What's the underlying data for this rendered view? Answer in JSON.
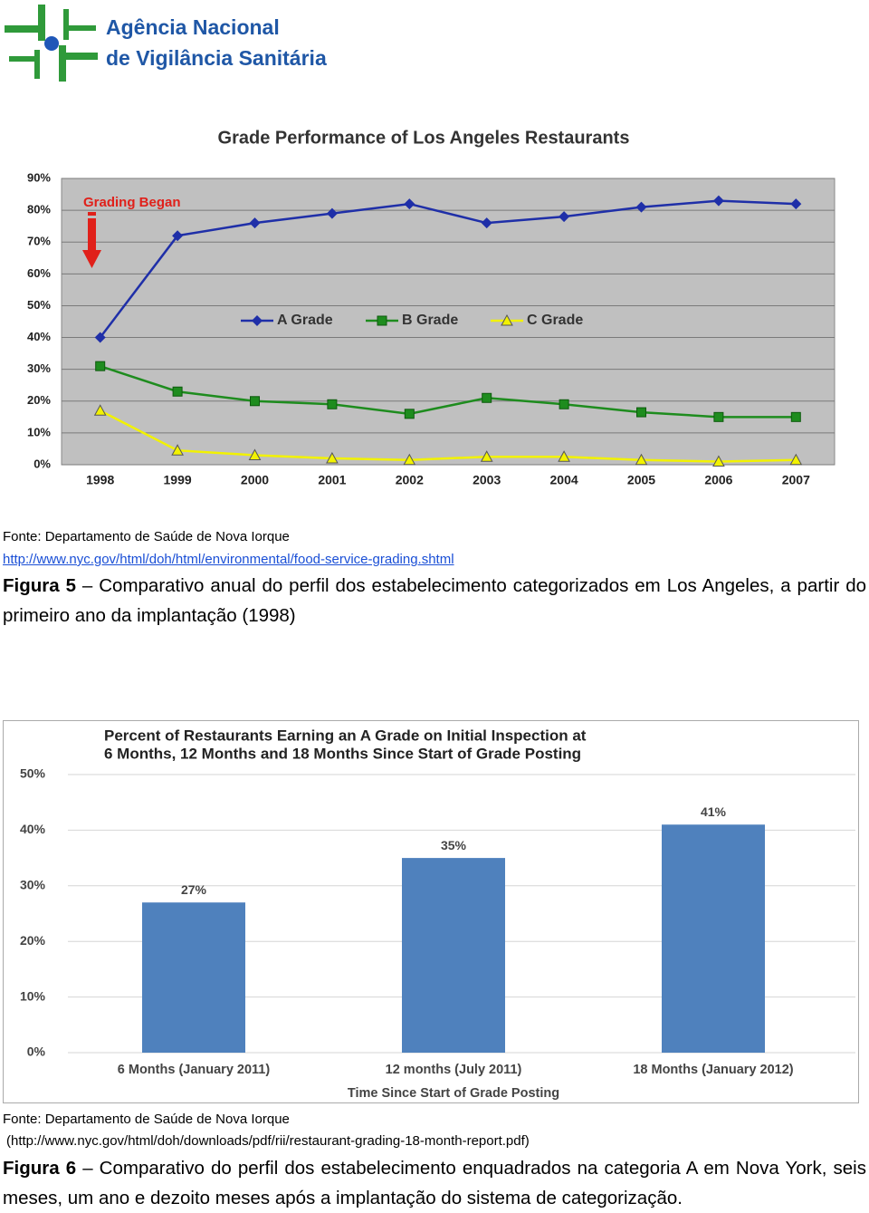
{
  "header": {
    "org": [
      "Agência Nacional",
      "de Vigilância Sanitária"
    ]
  },
  "chart_data": [
    {
      "type": "line",
      "title": "Grade Performance of Los Angeles Restaurants",
      "categories": [
        "1998",
        "1999",
        "2000",
        "2001",
        "2002",
        "2003",
        "2004",
        "2005",
        "2006",
        "2007"
      ],
      "series": [
        {
          "name": "A Grade",
          "color": "#1f2fa8",
          "marker": "diamond",
          "values": [
            40,
            72,
            76,
            79,
            82,
            76,
            78,
            81,
            83,
            82
          ]
        },
        {
          "name": "B Grade",
          "color": "#1e8c1e",
          "marker": "square",
          "values": [
            31,
            23,
            20,
            19,
            16,
            21,
            19,
            16.5,
            15,
            15
          ]
        },
        {
          "name": "C Grade",
          "color": "#f2f200",
          "marker": "triangle",
          "values": [
            17,
            4.5,
            3,
            2,
            1.5,
            2.5,
            2.5,
            1.5,
            1,
            1.5
          ]
        }
      ],
      "ylim": [
        0,
        90
      ],
      "yticks": [
        {
          "value": 0,
          "label": "0%"
        },
        {
          "value": 10,
          "label": "10%"
        },
        {
          "value": 20,
          "label": "20%"
        },
        {
          "value": 30,
          "label": "30%"
        },
        {
          "value": 40,
          "label": "40%"
        },
        {
          "value": 50,
          "label": "50%"
        },
        {
          "value": 60,
          "label": "60%"
        },
        {
          "value": 70,
          "label": "70%"
        },
        {
          "value": 80,
          "label": "80%"
        },
        {
          "value": 90,
          "label": "90%"
        }
      ],
      "grid": true,
      "legend": "center",
      "annotation": "Grading Began"
    },
    {
      "type": "bar",
      "title": [
        "Percent of Restaurants Earning an A Grade on Initial Inspection at",
        "6 Months, 12 Months and 18 Months Since Start of Grade Posting"
      ],
      "x_label": "Time Since Start of Grade Posting",
      "categories": [
        "6 Months (January 2011)",
        "12 months (July 2011)",
        "18 Months (January 2012)"
      ],
      "values": [
        27,
        35,
        41
      ],
      "value_labels": [
        "27%",
        "35%",
        "41%"
      ],
      "color": "#4f81bd",
      "ylim": [
        0,
        50
      ],
      "yticks": [
        {
          "value": 0,
          "label": "0%"
        },
        {
          "value": 10,
          "label": "10%"
        },
        {
          "value": 20,
          "label": "20%"
        },
        {
          "value": 30,
          "label": "30%"
        },
        {
          "value": 40,
          "label": "40%"
        },
        {
          "value": 50,
          "label": "50%"
        }
      ],
      "grid": true
    }
  ],
  "figures": [
    {
      "source": "Fonte: Departamento de Saúde de Nova Iorque",
      "link": "http://www.nyc.gov/html/doh/html/environmental/food-service-grading.shtml",
      "label": "Figura 5",
      "caption": "– Comparativo anual do perfil dos estabelecimento categorizados em Los Angeles, a partir do primeiro ano da implantação (1998)"
    },
    {
      "source": "Fonte: Departamento de Saúde de Nova Iorque",
      "link": "(http://www.nyc.gov/html/doh/downloads/pdf/rii/restaurant-grading-18-month-report.pdf)",
      "label": "Figura 6",
      "caption": "– Comparativo do perfil dos estabelecimento enquadrados na categoria A em Nova York, seis meses, um ano e dezoito meses após a implantação do sistema de categorização."
    }
  ]
}
